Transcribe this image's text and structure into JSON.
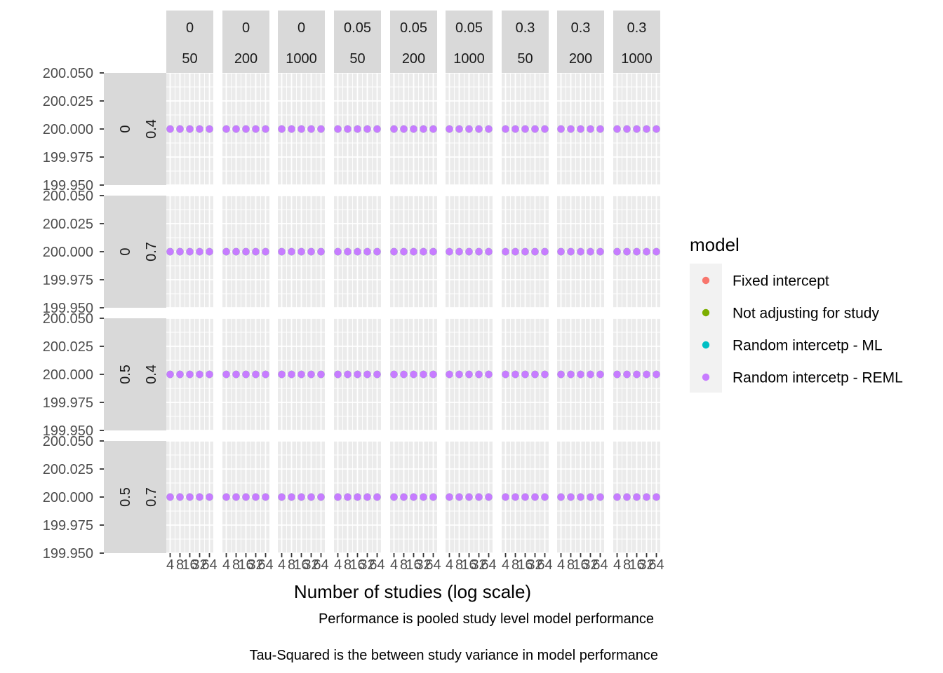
{
  "chart_data": {
    "type": "scatter",
    "xlabel": "Number of studies (log scale)",
    "ylabel": "",
    "x_scale": "log",
    "x_ticks": [
      4,
      8,
      16,
      32,
      64
    ],
    "x_tick_labels": [
      "4",
      "8",
      "16",
      "32",
      "64"
    ],
    "ylim": [
      199.95,
      200.05
    ],
    "y_ticks": [
      "200.050",
      "200.025",
      "200.000",
      "199.975",
      "199.950"
    ],
    "grid": true,
    "legend_position": "right",
    "legend_title": "model",
    "col_facets": [
      {
        "top": "0",
        "bottom": "50"
      },
      {
        "top": "0",
        "bottom": "200"
      },
      {
        "top": "0",
        "bottom": "1000"
      },
      {
        "top": "0.05",
        "bottom": "50"
      },
      {
        "top": "0.05",
        "bottom": "200"
      },
      {
        "top": "0.05",
        "bottom": "1000"
      },
      {
        "top": "0.3",
        "bottom": "50"
      },
      {
        "top": "0.3",
        "bottom": "200"
      },
      {
        "top": "0.3",
        "bottom": "1000"
      }
    ],
    "row_facets": [
      {
        "outer": "0",
        "inner": "0.4"
      },
      {
        "outer": "0",
        "inner": "0.7"
      },
      {
        "outer": "0.5",
        "inner": "0.4"
      },
      {
        "outer": "0.5",
        "inner": "0.7"
      }
    ],
    "series": [
      {
        "name": "Fixed intercept",
        "color": "#F8766D",
        "x": [
          4,
          8,
          16,
          32,
          64
        ],
        "y": [
          200,
          200,
          200,
          200,
          200
        ]
      },
      {
        "name": "Not adjusting for study",
        "color": "#7CAE00",
        "x": [
          4,
          8,
          16,
          32,
          64
        ],
        "y": [
          200,
          200,
          200,
          200,
          200
        ]
      },
      {
        "name": "Random intercetp - ML",
        "color": "#00BFC4",
        "x": [
          4,
          8,
          16,
          32,
          64
        ],
        "y": [
          200,
          200,
          200,
          200,
          200
        ]
      },
      {
        "name": "Random intercetp - REML",
        "color": "#C77CFF",
        "x": [
          4,
          8,
          16,
          32,
          64
        ],
        "y": [
          200,
          200,
          200,
          200,
          200
        ]
      }
    ],
    "captions": [
      "Performance is pooled study level model performance",
      "Tau-Squared is the between study variance in model performance"
    ]
  }
}
